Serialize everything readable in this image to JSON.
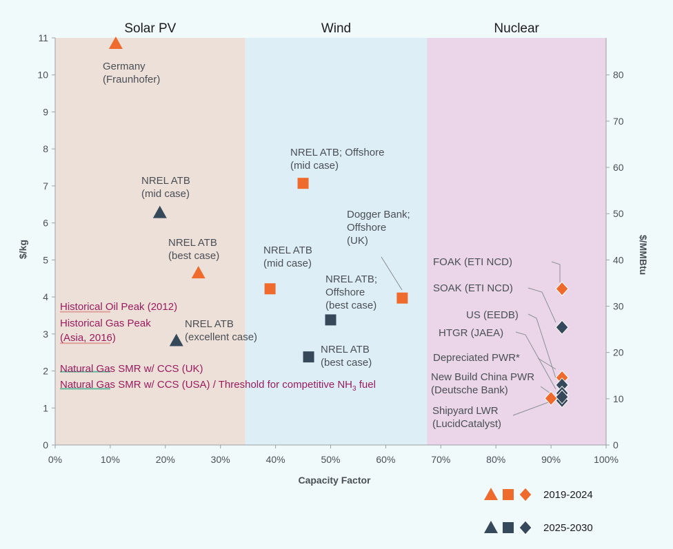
{
  "chart_data": {
    "type": "scatter",
    "xlabel": "Capacity Factor",
    "ylabel": "$/kg",
    "y2label": "$/MMBtu",
    "xlim": [
      0,
      100
    ],
    "ylim": [
      0,
      11
    ],
    "y2lim": [
      0,
      88
    ],
    "x_ticks": [
      "0%",
      "10%",
      "20%",
      "30%",
      "40%",
      "50%",
      "60%",
      "70%",
      "80%",
      "90%",
      "100%"
    ],
    "y_ticks": [
      "0",
      "1",
      "2",
      "3",
      "4",
      "5",
      "6",
      "7",
      "8",
      "9",
      "10",
      "11"
    ],
    "y2_ticks": [
      "0",
      "10",
      "20",
      "30",
      "40",
      "50",
      "60",
      "70",
      "80"
    ],
    "grid": false,
    "regions": [
      {
        "label": "Solar PV",
        "x_from": 0,
        "x_to": 34.5,
        "color": "#ede0d8"
      },
      {
        "label": "Wind",
        "x_from": 34.5,
        "x_to": 67.5,
        "color": "#ddeef6"
      },
      {
        "label": "Nuclear",
        "x_from": 67.5,
        "x_to": 100,
        "color": "#ead6e8"
      }
    ],
    "legend": {
      "placement": "bottom-right",
      "entries": [
        {
          "label": "2019-2024",
          "color": "#ee6b2d"
        },
        {
          "label": "2025-2030",
          "color": "#36495a"
        }
      ]
    },
    "series": [
      {
        "color": "#ee6b2d",
        "points": [
          {
            "x": 11,
            "y": 10.85,
            "shape": "triangle",
            "label": [
              "Germany",
              "(Fraunhofer)"
            ]
          },
          {
            "x": 26,
            "y": 4.65,
            "shape": "triangle",
            "label": [
              "NREL ATB",
              "(best case)"
            ]
          },
          {
            "x": 39,
            "y": 4.22,
            "shape": "square",
            "label": [
              "NREL ATB",
              "(mid case)"
            ]
          },
          {
            "x": 45,
            "y": 7.07,
            "shape": "square",
            "label": [
              "NREL ATB; Offshore",
              "(mid case)"
            ]
          },
          {
            "x": 63,
            "y": 3.97,
            "shape": "square",
            "label": [
              "Dogger Bank;",
              "Offshore",
              "(UK)"
            ]
          },
          {
            "x": 92,
            "y": 4.22,
            "shape": "diamond",
            "label": [
              "FOAK (ETI NCD)"
            ]
          },
          {
            "x": 92,
            "y": 1.82,
            "shape": "diamond",
            "label": [
              "Depreciated PWR*"
            ]
          },
          {
            "x": 90,
            "y": 1.26,
            "shape": "diamond",
            "label": []
          }
        ]
      },
      {
        "color": "#36495a",
        "points": [
          {
            "x": 19,
            "y": 6.28,
            "shape": "triangle",
            "label": [
              "NREL ATB",
              "(mid case)"
            ]
          },
          {
            "x": 22,
            "y": 2.82,
            "shape": "triangle",
            "label": [
              "NREL ATB",
              "(excellent case)"
            ]
          },
          {
            "x": 50,
            "y": 3.38,
            "shape": "square",
            "label": [
              "NREL ATB;",
              "Offshore",
              "(best case)"
            ]
          },
          {
            "x": 46,
            "y": 2.38,
            "shape": "square",
            "label": [
              "NREL ATB",
              "(best case)"
            ]
          },
          {
            "x": 92,
            "y": 3.18,
            "shape": "diamond",
            "label": [
              "SOAK (ETI NCD)"
            ]
          },
          {
            "x": 92,
            "y": 1.62,
            "shape": "diamond",
            "label": [
              "US (EEDB)"
            ]
          },
          {
            "x": 92,
            "y": 1.4,
            "shape": "diamond",
            "label": [
              "New Build China PWR",
              "(Deutsche Bank)"
            ]
          },
          {
            "x": 92,
            "y": 1.2,
            "shape": "diamond",
            "label": [
              "Shipyard LWR",
              "(LucidCatalyst)"
            ]
          },
          {
            "x": 92,
            "y": 1.3,
            "shape": "diamond",
            "label": [
              "HTGR (JAEA)"
            ]
          }
        ]
      }
    ],
    "reference_lines": [
      {
        "y": 3.6,
        "color": "#e0a09a",
        "label": [
          "Historical Oil Peak (2012)"
        ]
      },
      {
        "y": 2.75,
        "color": "#e0a09a",
        "label": [
          "Historical Gas Peak",
          "(Asia, 2016)"
        ]
      },
      {
        "y": 1.98,
        "color": "#5fb89a",
        "label": [
          "Natural Gas SMR w/ CCS (UK)"
        ]
      },
      {
        "y": 1.52,
        "color": "#5fb89a",
        "label": [
          "Natural Gas SMR w/ CCS (USA) / Threshold for competitive NH",
          "3",
          " fuel"
        ]
      }
    ]
  }
}
